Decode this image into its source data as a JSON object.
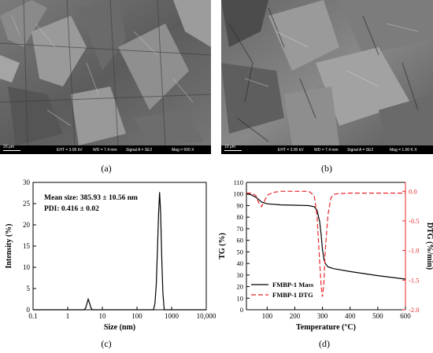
{
  "panels": {
    "a": {
      "caption": "(a)",
      "sem_info": {
        "scale": "20 µm",
        "eht": "EHT = 3.00 kV",
        "wd": "WD = 7.4 mm",
        "signal": "Signal A = SE2",
        "mag": "Mag =  500 X"
      }
    },
    "b": {
      "caption": "(b)",
      "sem_info": {
        "scale": "10 µm",
        "eht": "EHT = 3.00 kV",
        "wd": "WD = 7.4 mm",
        "signal": "Signal A = SE2",
        "mag": "Mag =  1.00 K X"
      }
    },
    "c": {
      "caption": "(c)"
    },
    "d": {
      "caption": "(d)"
    }
  },
  "chart_data": [
    {
      "type": "line",
      "panel": "c",
      "annotations": [
        "Mean size: 385.93 ± 10.56 nm",
        "PDI: 0.416 ± 0.02"
      ],
      "xlabel": "Size (nm)",
      "ylabel": "Intensity (%)",
      "xscale": "log",
      "xlim": [
        0.1,
        10000
      ],
      "ylim": [
        0,
        30
      ],
      "xticks": [
        "0.1",
        "1",
        "10",
        "100",
        "1000",
        "10,000"
      ],
      "yticks": [
        "0",
        "5",
        "10",
        "15",
        "20",
        "25",
        "30"
      ],
      "x": [
        0.1,
        3.0,
        3.3,
        3.6,
        3.9,
        4.3,
        4.7,
        5.2,
        300,
        330,
        360,
        390,
        420,
        450,
        480,
        520,
        560,
        610,
        10000
      ],
      "values": [
        0,
        0,
        0.4,
        1.5,
        2.5,
        1.5,
        0.4,
        0,
        0,
        1.5,
        6,
        14,
        22.5,
        27.7,
        23,
        12,
        4,
        0,
        0
      ],
      "color": "#000000"
    },
    {
      "type": "line",
      "panel": "d",
      "xlabel": "Temperature (°C)",
      "ylabel": "TG (%)",
      "y2label": "DTG (%/min)",
      "xlim": [
        25,
        600
      ],
      "ylim": [
        0,
        110
      ],
      "y2lim": [
        -2.0,
        0.15
      ],
      "xticks": [
        "100",
        "200",
        "300",
        "400",
        "500",
        "600"
      ],
      "yticks": [
        "0",
        "10",
        "20",
        "30",
        "40",
        "50",
        "60",
        "70",
        "80",
        "90",
        "100",
        "110"
      ],
      "y2ticks": [
        "0.0",
        "-0.5",
        "-1.0",
        "-1.5",
        "-2.0"
      ],
      "legend": "bottom-left",
      "series": [
        {
          "name": "FMBP-1 Mass",
          "axis": "left",
          "color": "#000000",
          "dash": "solid",
          "x": [
            25,
            40,
            60,
            80,
            100,
            150,
            200,
            250,
            270,
            280,
            290,
            295,
            300,
            305,
            310,
            320,
            340,
            400,
            500,
            600
          ],
          "values": [
            100,
            99.5,
            97,
            93,
            91.5,
            90.6,
            90.3,
            90,
            89,
            86,
            76,
            65,
            52,
            44,
            40,
            37,
            35.5,
            33,
            29.5,
            26.5
          ]
        },
        {
          "name": "FMBP-1 DTG",
          "axis": "right",
          "color": "#e8262a",
          "dash": "dashed",
          "x": [
            25,
            45,
            60,
            70,
            80,
            90,
            100,
            120,
            150,
            200,
            250,
            270,
            280,
            290,
            295,
            300,
            305,
            310,
            320,
            330,
            340,
            360,
            400,
            500,
            600
          ],
          "values": [
            -0.03,
            -0.03,
            -0.08,
            -0.2,
            -0.26,
            -0.17,
            -0.07,
            -0.02,
            0,
            0,
            0,
            -0.07,
            -0.4,
            -1.2,
            -1.6,
            -1.78,
            -1.55,
            -1.0,
            -0.4,
            -0.12,
            -0.05,
            -0.04,
            -0.03,
            -0.03,
            -0.03
          ]
        }
      ]
    }
  ]
}
